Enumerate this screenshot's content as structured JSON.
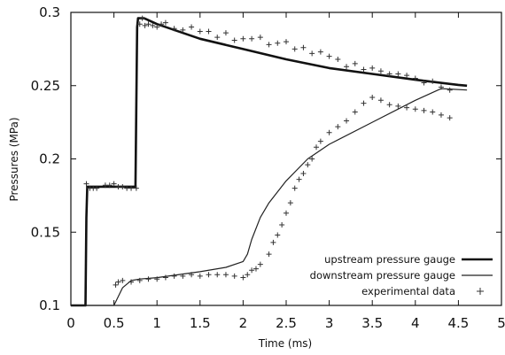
{
  "chart_data": {
    "type": "line",
    "title": "",
    "xlabel": "Time (ms)",
    "ylabel": "Pressures (MPa)",
    "xlim": [
      0,
      5
    ],
    "ylim": [
      0.1,
      0.3
    ],
    "x_ticks": [
      "0",
      "0.5",
      "1",
      "1.5",
      "2",
      "2.5",
      "3",
      "3.5",
      "4",
      "4.5",
      "5"
    ],
    "x_tick_values": [
      0,
      0.5,
      1,
      1.5,
      2,
      2.5,
      3,
      3.5,
      4,
      4.5,
      5
    ],
    "y_ticks": [
      "0.1",
      "0.15",
      "0.2",
      "0.25",
      "0.3"
    ],
    "y_tick_values": [
      0.1,
      0.15,
      0.2,
      0.25,
      0.3
    ],
    "grid": false,
    "legend_position": "bottom-right",
    "series": [
      {
        "name": "upstream pressure gauge",
        "style": "thick-line",
        "color": "#111111",
        "x": [
          0,
          0.17,
          0.18,
          0.19,
          0.75,
          0.77,
          0.78,
          0.85,
          1.0,
          1.5,
          2.0,
          2.5,
          3.0,
          3.5,
          4.0,
          4.5,
          4.6
        ],
        "y": [
          0.1,
          0.1,
          0.16,
          0.181,
          0.181,
          0.29,
          0.296,
          0.296,
          0.292,
          0.282,
          0.275,
          0.268,
          0.262,
          0.258,
          0.254,
          0.2505,
          0.25
        ]
      },
      {
        "name": "downstream pressure gauge",
        "style": "thin-line",
        "color": "#222222",
        "x": [
          0,
          0.5,
          0.6,
          0.7,
          0.8,
          1.0,
          1.5,
          1.8,
          2.0,
          2.05,
          2.1,
          2.2,
          2.3,
          2.5,
          2.75,
          3.0,
          3.5,
          4.0,
          4.3,
          4.6
        ],
        "y": [
          0.1,
          0.1,
          0.112,
          0.117,
          0.118,
          0.119,
          0.123,
          0.126,
          0.13,
          0.135,
          0.145,
          0.16,
          0.17,
          0.185,
          0.2,
          0.21,
          0.225,
          0.24,
          0.248,
          0.247
        ]
      },
      {
        "name": "experimental data",
        "style": "plus-markers",
        "color": "#333333",
        "x": [
          0.18,
          0.22,
          0.26,
          0.3,
          0.4,
          0.45,
          0.5,
          0.55,
          0.6,
          0.65,
          0.7,
          0.76,
          0.8,
          0.83,
          0.86,
          0.9,
          0.95,
          1.0,
          1.05,
          1.1,
          1.2,
          1.3,
          1.4,
          1.5,
          1.6,
          1.7,
          1.8,
          1.9,
          2.0,
          2.1,
          2.2,
          2.3,
          2.4,
          2.5,
          2.6,
          2.7,
          2.8,
          2.9,
          3.0,
          3.1,
          3.2,
          3.3,
          3.4,
          3.5,
          3.6,
          3.7,
          3.8,
          3.9,
          4.0,
          4.1,
          4.2,
          4.3,
          4.4,
          0.52,
          0.55,
          0.6,
          0.7,
          0.8,
          0.9,
          1.0,
          1.1,
          1.2,
          1.3,
          1.4,
          1.5,
          1.6,
          1.7,
          1.8,
          1.9,
          2.0,
          2.05,
          2.1,
          2.15,
          2.2,
          2.3,
          2.35,
          2.4,
          2.45,
          2.5,
          2.55,
          2.6,
          2.65,
          2.7,
          2.75,
          2.8,
          2.85,
          2.9,
          3.0,
          3.1,
          3.2,
          3.3,
          3.4,
          3.5,
          3.6,
          3.7,
          3.8,
          3.9,
          4.0,
          4.1,
          4.2,
          4.3,
          4.4
        ],
        "y": [
          0.183,
          0.18,
          0.18,
          0.18,
          0.182,
          0.182,
          0.183,
          0.181,
          0.181,
          0.18,
          0.18,
          0.18,
          0.292,
          0.296,
          0.291,
          0.292,
          0.291,
          0.29,
          0.292,
          0.293,
          0.289,
          0.288,
          0.29,
          0.287,
          0.287,
          0.283,
          0.286,
          0.281,
          0.282,
          0.282,
          0.283,
          0.278,
          0.279,
          0.28,
          0.275,
          0.276,
          0.272,
          0.273,
          0.27,
          0.268,
          0.263,
          0.265,
          0.261,
          0.262,
          0.26,
          0.258,
          0.258,
          0.257,
          0.255,
          0.252,
          0.253,
          0.249,
          0.247,
          0.114,
          0.116,
          0.117,
          0.116,
          0.117,
          0.118,
          0.118,
          0.119,
          0.12,
          0.12,
          0.121,
          0.12,
          0.121,
          0.121,
          0.121,
          0.12,
          0.119,
          0.121,
          0.124,
          0.125,
          0.128,
          0.135,
          0.143,
          0.148,
          0.155,
          0.163,
          0.17,
          0.18,
          0.186,
          0.19,
          0.196,
          0.2,
          0.208,
          0.212,
          0.218,
          0.222,
          0.226,
          0.232,
          0.238,
          0.242,
          0.24,
          0.237,
          0.236,
          0.235,
          0.234,
          0.233,
          0.232,
          0.23,
          0.228
        ]
      }
    ]
  }
}
